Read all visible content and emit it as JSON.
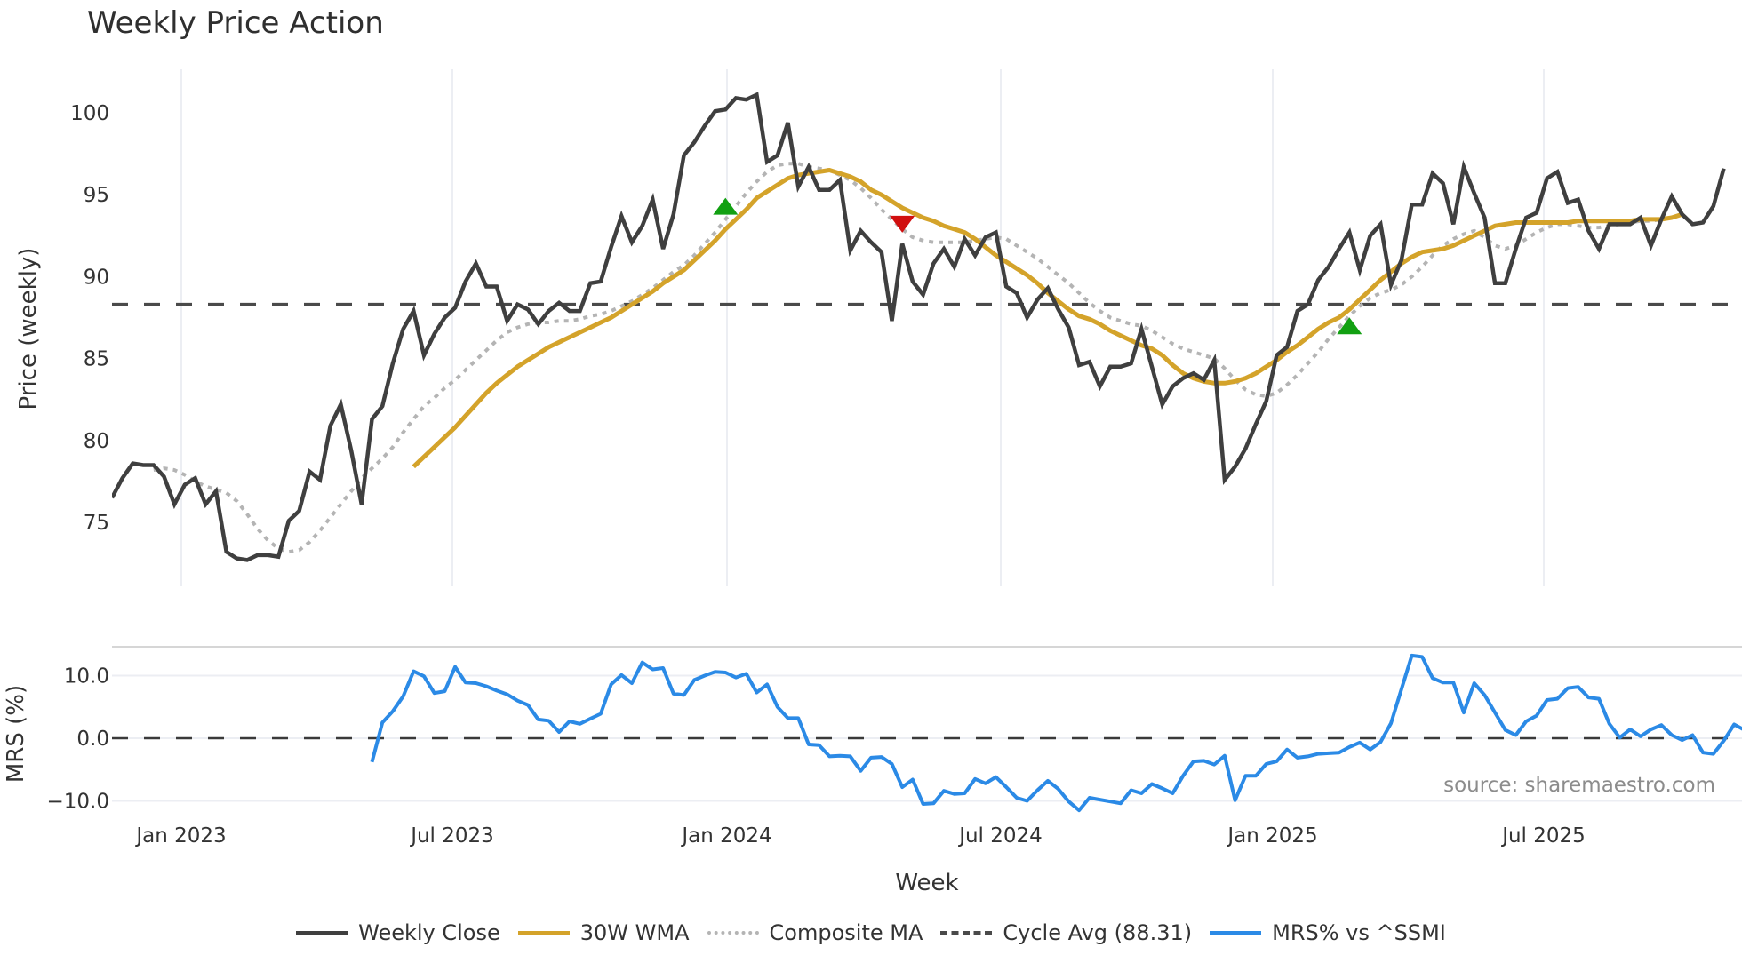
{
  "title": "Weekly Price Action",
  "colors": {
    "close": "#3f3f3f",
    "wma": "#d4a32a",
    "composite": "#b4b4b4",
    "cycle": "#4a4a4a",
    "mrs": "#2b8ae6",
    "buy_signal": "#12a012",
    "sell_signal": "#d10f0f",
    "grid": "#eceef3"
  },
  "legend": [
    {
      "key": "close",
      "label": "Weekly Close",
      "style": "solid"
    },
    {
      "key": "wma",
      "label": "30W WMA",
      "style": "solid"
    },
    {
      "key": "composite",
      "label": "Composite MA",
      "style": "dotted"
    },
    {
      "key": "cycle",
      "label": "Cycle Avg (88.31)",
      "style": "dashed"
    },
    {
      "key": "mrs",
      "label": "MRS% vs ^SSMI",
      "style": "solid"
    }
  ],
  "source_text": "source: sharemaestro.com",
  "chart_data": [
    {
      "type": "line",
      "title": "Weekly Price Action",
      "xlabel": "Week",
      "ylabel": "Price (weekly)",
      "x_ticks": [
        "Jan 2023",
        "Jul 2023",
        "Jan 2024",
        "Jul 2024",
        "Jan 2025",
        "Jul 2025"
      ],
      "y_ticks": [
        75,
        80,
        85,
        90,
        95,
        100
      ],
      "ylim": [
        71.5,
        102.5
      ],
      "grid": "vertical",
      "start_week_offset_from_jan2023": -6.6,
      "cycle_avg": 88.31,
      "series": [
        {
          "name": "Weekly Close",
          "values": [
            76.5,
            77.7,
            78.6,
            78.5,
            78.5,
            77.8,
            76.1,
            77.3,
            77.7,
            76.1,
            76.9,
            73.2,
            72.8,
            72.7,
            73.0,
            73.0,
            72.9,
            75.1,
            75.7,
            78.1,
            77.6,
            80.9,
            82.2,
            79.4,
            76.1,
            81.3,
            82.1,
            84.7,
            86.8,
            87.9,
            85.2,
            86.5,
            87.5,
            88.1,
            89.7,
            90.8,
            89.4,
            89.4,
            87.3,
            88.3,
            88.0,
            87.1,
            87.9,
            88.4,
            87.9,
            87.9,
            89.6,
            89.7,
            91.8,
            93.7,
            92.1,
            93.1,
            94.7,
            91.7,
            93.8,
            97.4,
            98.2,
            99.2,
            100.1,
            100.2,
            100.9,
            100.8,
            101.1,
            97.0,
            97.4,
            99.4,
            95.5,
            96.7,
            95.3,
            95.3,
            95.9,
            91.6,
            92.8,
            92.1,
            91.5,
            87.3,
            92.0,
            89.7,
            88.9,
            90.8,
            91.7,
            90.6,
            92.3,
            91.3,
            92.4,
            92.7,
            89.4,
            89.0,
            87.5,
            88.6,
            89.3,
            88.0,
            86.9,
            84.6,
            84.8,
            83.3,
            84.5,
            84.5,
            84.7,
            86.8,
            84.5,
            82.2,
            83.3,
            83.8,
            84.1,
            83.7,
            84.9,
            77.6,
            78.4,
            79.5,
            81.0,
            82.4,
            85.2,
            85.7,
            87.9,
            88.3,
            89.8,
            90.6,
            91.7,
            92.7,
            90.4,
            92.5,
            93.2,
            89.5,
            91.0,
            94.4,
            94.4,
            96.3,
            95.7,
            93.2,
            96.7,
            95.1,
            93.6,
            89.6,
            89.6,
            91.7,
            93.6,
            93.9,
            96.0,
            96.4,
            94.5,
            94.7,
            92.8,
            91.7,
            93.2,
            93.2,
            93.2,
            93.6,
            91.9,
            93.5,
            94.9,
            93.8,
            93.2,
            93.3,
            94.3,
            96.6
          ]
        },
        {
          "name": "30W WMA",
          "start_index": 29,
          "values": [
            78.4,
            79.0,
            79.6,
            80.2,
            80.8,
            81.5,
            82.2,
            82.9,
            83.5,
            84.0,
            84.5,
            84.9,
            85.3,
            85.7,
            86.0,
            86.3,
            86.6,
            86.9,
            87.2,
            87.5,
            87.9,
            88.3,
            88.7,
            89.1,
            89.6,
            90.0,
            90.4,
            91.0,
            91.6,
            92.2,
            92.9,
            93.5,
            94.1,
            94.8,
            95.2,
            95.6,
            96.0,
            96.2,
            96.3,
            96.4,
            96.5,
            96.3,
            96.1,
            95.8,
            95.3,
            95.0,
            94.6,
            94.2,
            93.9,
            93.6,
            93.4,
            93.1,
            92.9,
            92.7,
            92.3,
            91.8,
            91.3,
            90.9,
            90.5,
            90.1,
            89.6,
            89.0,
            88.5,
            88.0,
            87.6,
            87.4,
            87.1,
            86.7,
            86.4,
            86.1,
            85.8,
            85.6,
            85.2,
            84.6,
            84.1,
            83.8,
            83.6,
            83.5,
            83.5,
            83.6,
            83.8,
            84.1,
            84.5,
            84.9,
            85.4,
            85.8,
            86.3,
            86.8,
            87.2,
            87.5,
            88.0,
            88.6,
            89.2,
            89.8,
            90.3,
            90.8,
            91.2,
            91.5,
            91.6,
            91.7,
            91.9,
            92.2,
            92.5,
            92.8,
            93.1,
            93.2,
            93.3,
            93.3,
            93.3,
            93.3,
            93.3,
            93.3,
            93.4,
            93.4,
            93.4,
            93.4,
            93.4,
            93.4,
            93.5,
            93.5,
            93.5,
            93.6,
            93.8
          ]
        },
        {
          "name": "Composite MA",
          "start_index": 4,
          "values": [
            78.2,
            78.3,
            78.2,
            77.9,
            77.5,
            77.2,
            77.0,
            76.8,
            76.3,
            75.5,
            74.6,
            73.9,
            73.4,
            73.2,
            73.3,
            73.8,
            74.5,
            75.3,
            76.1,
            76.9,
            77.7,
            78.3,
            78.9,
            79.6,
            80.5,
            81.3,
            82.1,
            82.6,
            83.2,
            83.7,
            84.3,
            84.9,
            85.5,
            86.1,
            86.6,
            86.9,
            87.1,
            87.2,
            87.2,
            87.3,
            87.3,
            87.4,
            87.6,
            87.7,
            87.9,
            88.2,
            88.5,
            88.9,
            89.3,
            89.8,
            90.3,
            90.7,
            91.3,
            92.0,
            92.7,
            93.5,
            94.3,
            95.1,
            95.8,
            96.4,
            96.8,
            96.9,
            96.9,
            96.7,
            96.6,
            96.5,
            96.2,
            95.9,
            95.4,
            94.8,
            94.1,
            93.5,
            92.9,
            92.4,
            92.2,
            92.1,
            92.1,
            92.1,
            92.1,
            92.2,
            92.3,
            92.4,
            92.3,
            91.9,
            91.5,
            91.1,
            90.6,
            90.1,
            89.6,
            89.0,
            88.4,
            87.9,
            87.5,
            87.3,
            87.1,
            87.0,
            86.7,
            86.3,
            85.9,
            85.6,
            85.4,
            85.2,
            85.0,
            84.4,
            83.7,
            83.1,
            82.8,
            82.7,
            82.9,
            83.4,
            84.0,
            84.7,
            85.4,
            86.2,
            86.9,
            87.6,
            88.2,
            88.7,
            89.0,
            89.2,
            89.5,
            90.0,
            90.6,
            91.3,
            91.9,
            92.3,
            92.6,
            92.8,
            92.4,
            91.9,
            91.7,
            91.9,
            92.3,
            92.7,
            93.0,
            93.2,
            93.2,
            93.1,
            93.0,
            93.0,
            93.1,
            93.2,
            93.3,
            93.4,
            93.4,
            93.5,
            93.6,
            93.8
          ]
        }
      ],
      "signals": [
        {
          "type": "buy",
          "index": 59,
          "value": 94.3
        },
        {
          "type": "sell",
          "index": 76,
          "value": 93.2
        },
        {
          "type": "buy",
          "index": 119,
          "value": 87.0
        }
      ]
    },
    {
      "type": "line",
      "title": "",
      "ylabel": "MRS (%)",
      "y_ticks": [
        -10.0,
        0.0,
        10.0
      ],
      "ylim": [
        -13.0,
        14.5
      ],
      "zero_line": "dashed",
      "series": [
        {
          "name": "MRS% vs ^SSMI",
          "start_index": 25,
          "values": [
            -3.8,
            2.5,
            4.3,
            6.7,
            10.7,
            9.9,
            7.2,
            7.5,
            11.4,
            8.9,
            8.8,
            8.3,
            7.6,
            7.0,
            6.0,
            5.3,
            3.0,
            2.8,
            1.0,
            2.7,
            2.3,
            3.1,
            3.9,
            8.6,
            10.1,
            8.8,
            12.1,
            11.0,
            11.2,
            7.1,
            6.9,
            9.3,
            10.0,
            10.6,
            10.5,
            9.7,
            10.3,
            7.3,
            8.6,
            5.0,
            3.2,
            3.2,
            -1.0,
            -1.1,
            -2.9,
            -2.8,
            -2.9,
            -5.2,
            -3.1,
            -3.0,
            -4.1,
            -7.8,
            -6.6,
            -10.5,
            -10.4,
            -8.4,
            -8.9,
            -8.8,
            -6.5,
            -7.2,
            -6.2,
            -7.8,
            -9.5,
            -10.0,
            -8.3,
            -6.8,
            -8.1,
            -10.1,
            -11.5,
            -9.5,
            -9.8,
            -10.1,
            -10.4,
            -8.3,
            -8.8,
            -7.3,
            -8.0,
            -8.8,
            -6.0,
            -3.7,
            -3.6,
            -4.2,
            -2.8,
            -9.9,
            -6.0,
            -6.0,
            -4.1,
            -3.7,
            -1.8,
            -3.1,
            -2.9,
            -2.5,
            -2.4,
            -2.3,
            -1.4,
            -0.7,
            -1.8,
            -0.6,
            2.4,
            7.8,
            13.2,
            13.0,
            9.6,
            8.9,
            8.9,
            4.1,
            8.8,
            6.9,
            4.1,
            1.3,
            0.5,
            2.7,
            3.6,
            6.1,
            6.3,
            8.0,
            8.2,
            6.5,
            6.3,
            2.3,
            0.1,
            1.4,
            0.3,
            1.4,
            2.1,
            0.5,
            -0.3,
            0.5,
            -2.3,
            -2.5,
            -0.4,
            2.2,
            1.3
          ]
        }
      ]
    }
  ]
}
